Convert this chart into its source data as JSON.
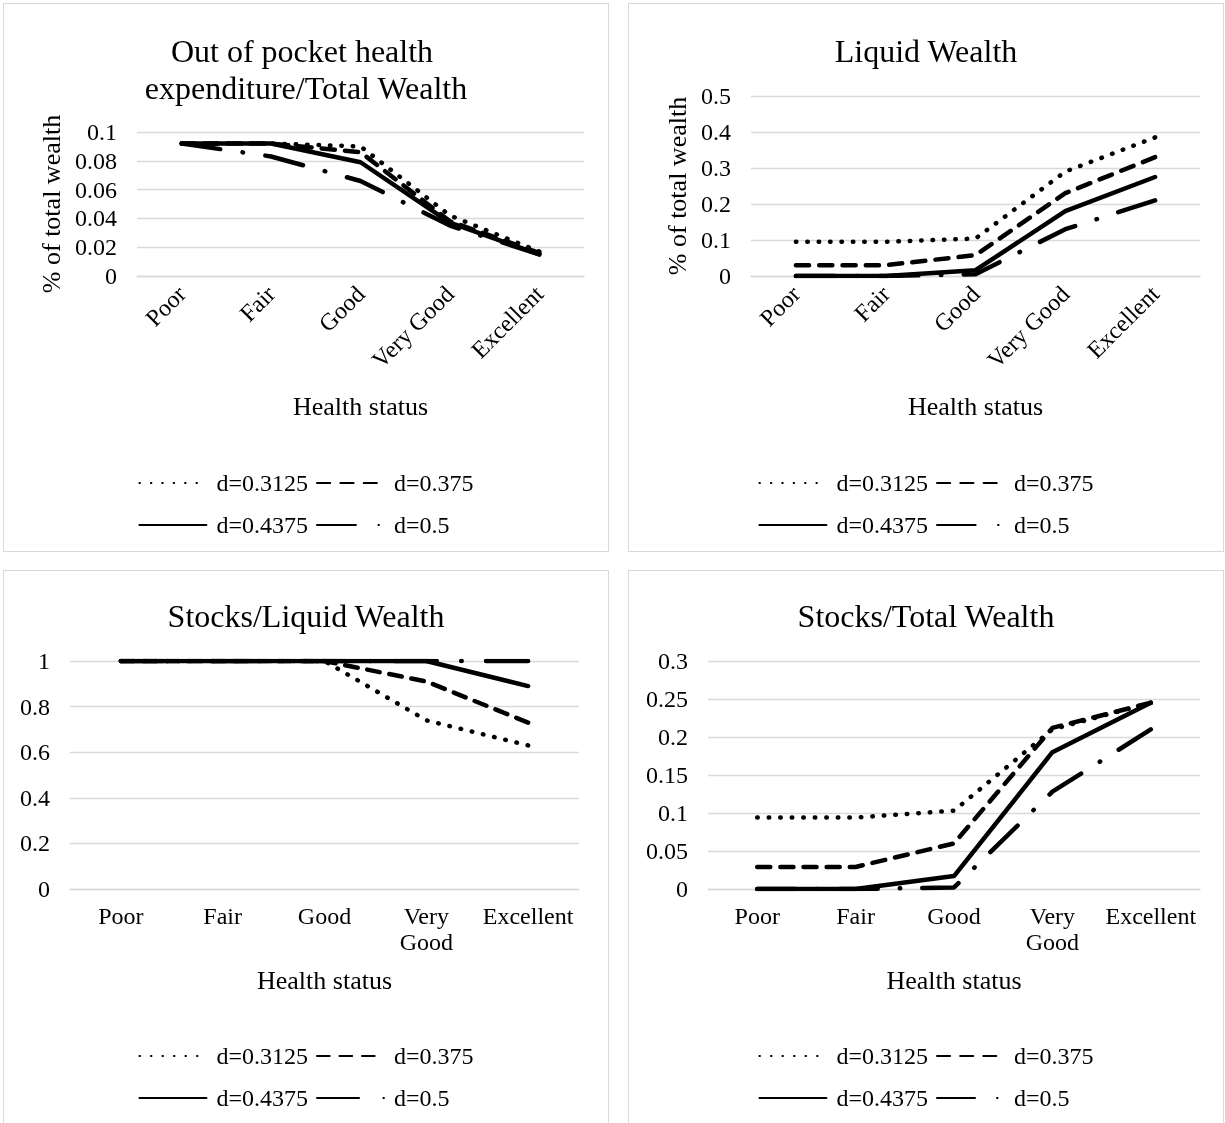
{
  "chart_data": [
    {
      "type": "line",
      "title": "Out of pocket health expenditure/Total Wealth",
      "xlabel": "Health status",
      "ylabel": "% of total wealth",
      "categories": [
        "Poor",
        "Fair",
        "Good",
        "Very Good",
        "Excellent"
      ],
      "series": [
        {
          "name": "d=0.3125",
          "color": "#000000",
          "line_style": "dotted",
          "values": [
            0.092,
            0.092,
            0.09,
            0.042,
            0.017
          ]
        },
        {
          "name": "d=0.375",
          "color": "#000000",
          "line_style": "dashed",
          "values": [
            0.092,
            0.092,
            0.086,
            0.038,
            0.016
          ]
        },
        {
          "name": "d=0.4375",
          "color": "#000000",
          "line_style": "solid",
          "values": [
            0.092,
            0.092,
            0.079,
            0.037,
            0.015
          ]
        },
        {
          "name": "d=0.5",
          "color": "#000000",
          "line_style": "dashdot",
          "values": [
            0.092,
            0.083,
            0.066,
            0.035,
            0.015
          ]
        }
      ],
      "ylim": [
        0,
        0.1
      ],
      "yticks": [
        0,
        0.02,
        0.04,
        0.06,
        0.08,
        0.1
      ],
      "grid": "y",
      "legend": "bottom",
      "marker": "none"
    },
    {
      "type": "line",
      "title": "Liquid Wealth",
      "xlabel": "Health status",
      "ylabel": "% of total wealth",
      "categories": [
        "Poor",
        "Fair",
        "Good",
        "Very Good",
        "Excellent"
      ],
      "series": [
        {
          "name": "d=0.3125",
          "color": "#000000",
          "line_style": "dotted",
          "values": [
            0.095,
            0.095,
            0.104,
            0.29,
            0.385
          ]
        },
        {
          "name": "d=0.375",
          "color": "#000000",
          "line_style": "dashed",
          "values": [
            0.03,
            0.03,
            0.058,
            0.23,
            0.33
          ]
        },
        {
          "name": "d=0.4375",
          "color": "#000000",
          "line_style": "solid",
          "values": [
            0,
            0,
            0.016,
            0.18,
            0.275
          ]
        },
        {
          "name": "d=0.5",
          "color": "#000000",
          "line_style": "dashdot",
          "values": [
            0,
            0,
            0.005,
            0.13,
            0.21
          ]
        }
      ],
      "ylim": [
        0,
        0.5
      ],
      "yticks": [
        0,
        0.1,
        0.2,
        0.3,
        0.4,
        0.5
      ],
      "grid": "y",
      "legend": "bottom",
      "marker": "none"
    },
    {
      "type": "line",
      "title": "Stocks/Liquid Wealth",
      "xlabel": "Health status",
      "categories": [
        "Poor",
        "Fair",
        "Good",
        "Very Good",
        "Excellent"
      ],
      "series": [
        {
          "name": "d=0.3125",
          "color": "#000000",
          "line_style": "dotted",
          "values": [
            1,
            1,
            1,
            0.74,
            0.63
          ]
        },
        {
          "name": "d=0.375",
          "color": "#000000",
          "line_style": "dashed",
          "values": [
            1,
            1,
            1,
            0.91,
            0.73
          ]
        },
        {
          "name": "d=0.4375",
          "color": "#000000",
          "line_style": "solid",
          "values": [
            1,
            1,
            1,
            1,
            0.89
          ]
        },
        {
          "name": "d=0.5",
          "color": "#000000",
          "line_style": "dashdot",
          "values": [
            1,
            1,
            1,
            1,
            1
          ]
        }
      ],
      "ylim": [
        0,
        1
      ],
      "yticks": [
        0,
        0.2,
        0.4,
        0.6,
        0.8,
        1
      ],
      "grid": "y",
      "legend": "bottom",
      "marker": "none"
    },
    {
      "type": "line",
      "title": "Stocks/Total Wealth",
      "xlabel": "Health status",
      "categories": [
        "Poor",
        "Fair",
        "Good",
        "Very Good",
        "Excellent"
      ],
      "series": [
        {
          "name": "d=0.3125",
          "color": "#000000",
          "line_style": "dotted",
          "values": [
            0.094,
            0.094,
            0.103,
            0.21,
            0.245
          ]
        },
        {
          "name": "d=0.375",
          "color": "#000000",
          "line_style": "dashed",
          "values": [
            0.029,
            0.029,
            0.06,
            0.212,
            0.245
          ]
        },
        {
          "name": "d=0.4375",
          "color": "#000000",
          "line_style": "solid",
          "values": [
            0,
            0,
            0.017,
            0.18,
            0.245
          ]
        },
        {
          "name": "d=0.5",
          "color": "#000000",
          "line_style": "dashdot",
          "values": [
            0,
            0,
            0.002,
            0.128,
            0.21
          ]
        }
      ],
      "ylim": [
        0,
        0.3
      ],
      "yticks": [
        0,
        0.05,
        0.1,
        0.15,
        0.2,
        0.25,
        0.3
      ],
      "grid": "y",
      "legend": "bottom",
      "marker": "none"
    }
  ]
}
